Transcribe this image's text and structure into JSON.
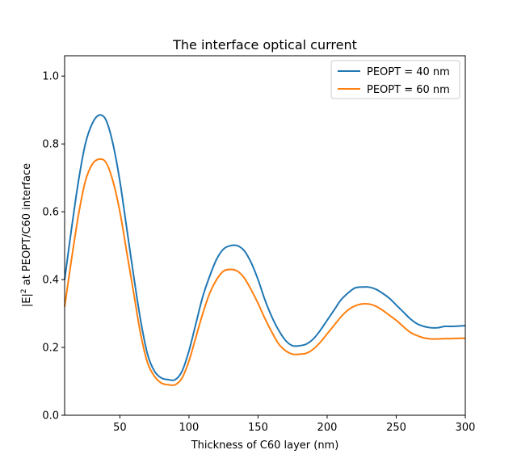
{
  "chart_data": {
    "type": "line",
    "title": "The interface optical current",
    "xlabel": "Thickness of C60 layer (nm)",
    "ylabel_prefix": "|E|",
    "ylabel_superscript": "2",
    "ylabel_suffix": " at PEOPT/C60 interface",
    "xlim": [
      10,
      300
    ],
    "ylim": [
      0,
      1.06
    ],
    "xticks": [
      50,
      100,
      150,
      200,
      250,
      300
    ],
    "xtick_labels": [
      "50",
      "100",
      "150",
      "200",
      "250",
      "300"
    ],
    "yticks": [
      0.0,
      0.2,
      0.4,
      0.6,
      0.8,
      1.0
    ],
    "ytick_labels": [
      "0.0",
      "0.2",
      "0.4",
      "0.6",
      "0.8",
      "1.0"
    ],
    "grid": false,
    "legend_position": "top-right",
    "series": [
      {
        "name": "PEOPT = 40 nm",
        "color": "#1f77b4",
        "x": [
          10,
          15,
          20,
          25,
          30,
          35,
          40,
          45,
          50,
          55,
          60,
          65,
          70,
          75,
          80,
          85,
          90,
          95,
          100,
          105,
          110,
          115,
          120,
          125,
          130,
          135,
          140,
          145,
          150,
          155,
          160,
          165,
          170,
          175,
          180,
          185,
          190,
          195,
          200,
          205,
          210,
          215,
          220,
          225,
          230,
          235,
          240,
          245,
          250,
          255,
          260,
          265,
          270,
          275,
          280,
          285,
          290,
          295,
          300
        ],
        "y": [
          0.4,
          0.55,
          0.69,
          0.8,
          0.86,
          0.885,
          0.87,
          0.8,
          0.69,
          0.55,
          0.41,
          0.28,
          0.18,
          0.13,
          0.11,
          0.105,
          0.105,
          0.13,
          0.19,
          0.27,
          0.35,
          0.41,
          0.46,
          0.49,
          0.5,
          0.5,
          0.485,
          0.45,
          0.4,
          0.34,
          0.29,
          0.25,
          0.22,
          0.205,
          0.205,
          0.21,
          0.225,
          0.25,
          0.28,
          0.31,
          0.34,
          0.36,
          0.375,
          0.378,
          0.378,
          0.372,
          0.36,
          0.345,
          0.325,
          0.305,
          0.285,
          0.27,
          0.262,
          0.258,
          0.258,
          0.262,
          0.262,
          0.263,
          0.264
        ]
      },
      {
        "name": "PEOPT = 60 nm",
        "color": "#ff7f0e",
        "x": [
          10,
          15,
          20,
          25,
          30,
          35,
          40,
          45,
          50,
          55,
          60,
          65,
          70,
          75,
          80,
          85,
          90,
          95,
          100,
          105,
          110,
          115,
          120,
          125,
          130,
          135,
          140,
          145,
          150,
          155,
          160,
          165,
          170,
          175,
          180,
          185,
          190,
          195,
          200,
          205,
          210,
          215,
          220,
          225,
          230,
          235,
          240,
          245,
          250,
          255,
          260,
          265,
          270,
          275,
          280,
          285,
          290,
          295,
          300
        ],
        "y": [
          0.32,
          0.46,
          0.59,
          0.69,
          0.74,
          0.755,
          0.745,
          0.69,
          0.6,
          0.48,
          0.36,
          0.24,
          0.155,
          0.115,
          0.095,
          0.09,
          0.09,
          0.11,
          0.16,
          0.23,
          0.3,
          0.36,
          0.4,
          0.425,
          0.43,
          0.425,
          0.405,
          0.37,
          0.33,
          0.285,
          0.245,
          0.21,
          0.19,
          0.18,
          0.18,
          0.183,
          0.195,
          0.215,
          0.24,
          0.265,
          0.29,
          0.31,
          0.322,
          0.328,
          0.328,
          0.322,
          0.31,
          0.295,
          0.28,
          0.262,
          0.245,
          0.235,
          0.228,
          0.225,
          0.225,
          0.226,
          0.226,
          0.227,
          0.227
        ]
      }
    ]
  }
}
